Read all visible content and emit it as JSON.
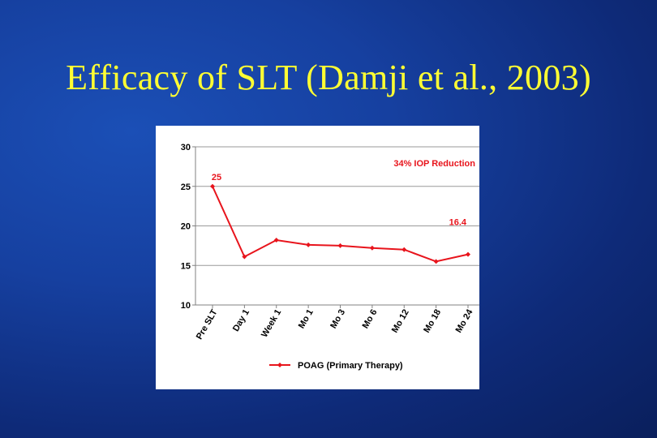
{
  "slide": {
    "title": "Efficacy of SLT (Damji et al., 2003)"
  },
  "chart_data": {
    "type": "line",
    "categories": [
      "Pre SLT",
      "Day 1",
      "Week 1",
      "Mo 1",
      "Mo 3",
      "Mo 6",
      "Mo 12",
      "Mo 18",
      "Mo 24"
    ],
    "series": [
      {
        "name": "POAG  (Primary  Therapy)",
        "values": [
          25,
          16.1,
          18.2,
          17.6,
          17.5,
          17.2,
          17.0,
          15.5,
          16.4
        ],
        "color": "#e8141c"
      }
    ],
    "ylim": [
      10,
      30
    ],
    "yticks": [
      10,
      15,
      20,
      25,
      30
    ],
    "grid": true,
    "legend": "bottom",
    "data_labels": [
      {
        "index": 0,
        "text": "25"
      },
      {
        "index": 8,
        "text": "16.4"
      }
    ],
    "annotation": "34%  IOP  Reduction",
    "xlabel": "",
    "ylabel": ""
  }
}
